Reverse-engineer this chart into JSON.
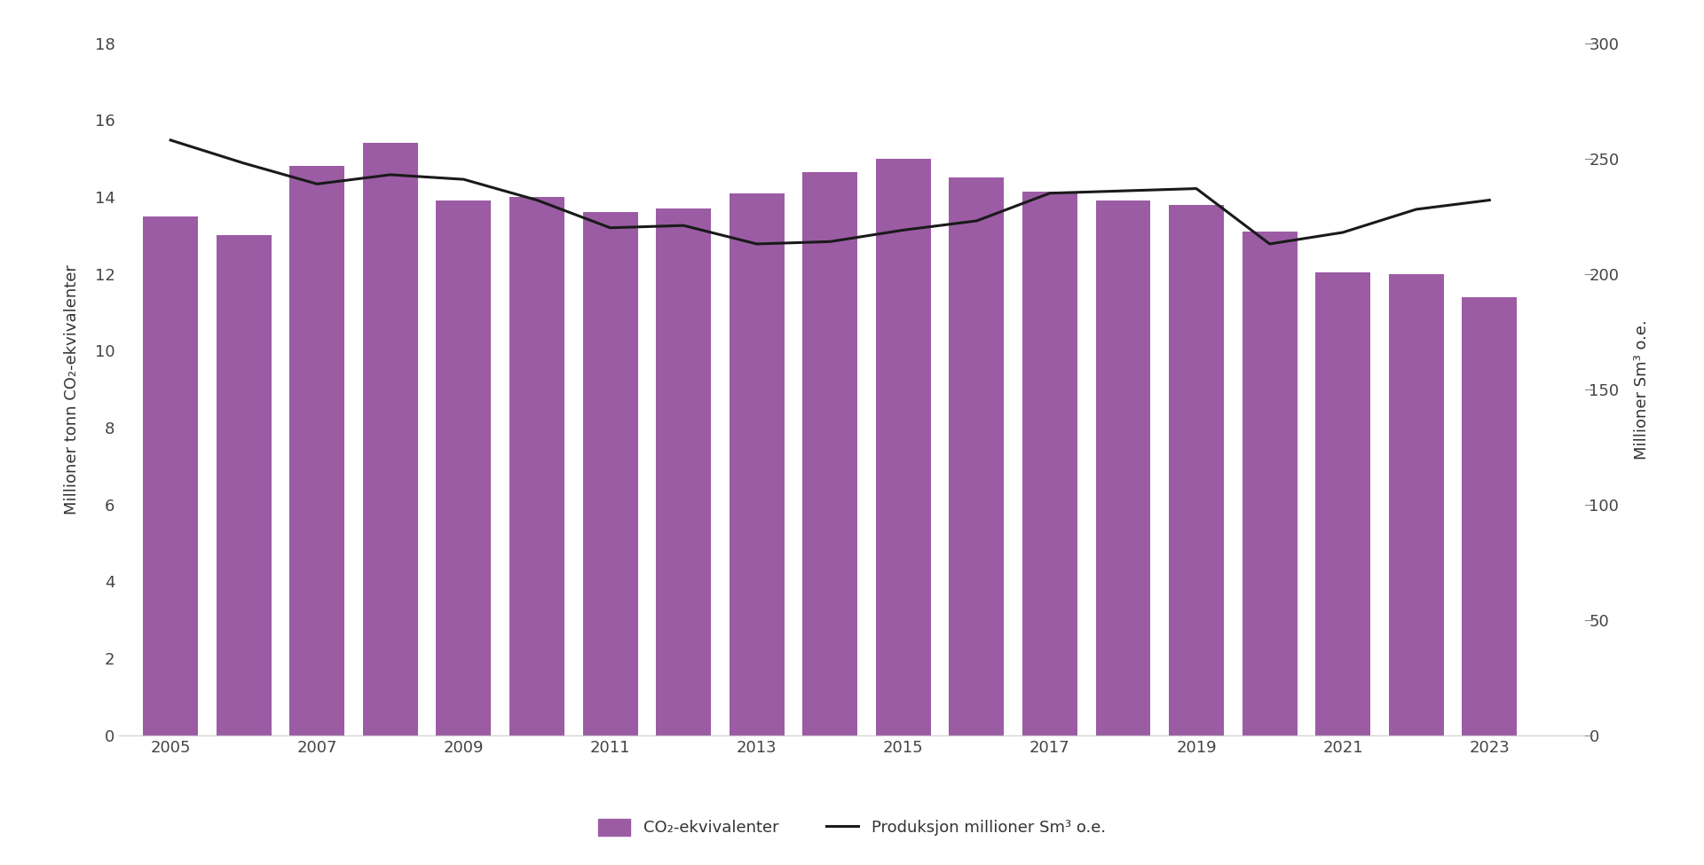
{
  "years": [
    2005,
    2006,
    2007,
    2008,
    2009,
    2010,
    2011,
    2012,
    2013,
    2014,
    2015,
    2016,
    2017,
    2018,
    2019,
    2020,
    2021,
    2022,
    2023
  ],
  "co2_values": [
    13.5,
    13.0,
    14.8,
    15.4,
    13.9,
    14.0,
    13.6,
    13.7,
    14.1,
    14.65,
    15.0,
    14.5,
    14.15,
    13.9,
    13.8,
    13.1,
    12.05,
    12.0,
    11.4
  ],
  "production_values": [
    258,
    248,
    239,
    243,
    241,
    232,
    220,
    221,
    213,
    214,
    219,
    223,
    235,
    236,
    237,
    213,
    218,
    228,
    232
  ],
  "bar_color": "#9b5ca4",
  "line_color": "#1a1a1a",
  "left_ylim": [
    0,
    18
  ],
  "right_ylim": [
    0,
    300
  ],
  "left_yticks": [
    0,
    2,
    4,
    6,
    8,
    10,
    12,
    14,
    16,
    18
  ],
  "right_yticks": [
    0,
    50,
    100,
    150,
    200,
    250,
    300
  ],
  "left_ylabel": "Millioner tonn CO₂-ekvivalenter",
  "right_ylabel": "Millioner Sm³ o.e.",
  "legend_bar_label": "CO₂-ekvivalenter",
  "legend_line_label": "Produksjon millioner Sm³ o.e.",
  "background_color": "#ffffff",
  "bar_width": 0.75,
  "axis_fontsize": 13,
  "legend_fontsize": 13,
  "tick_fontsize": 13,
  "xtick_years": [
    2005,
    2007,
    2009,
    2011,
    2013,
    2015,
    2017,
    2019,
    2021,
    2023
  ]
}
